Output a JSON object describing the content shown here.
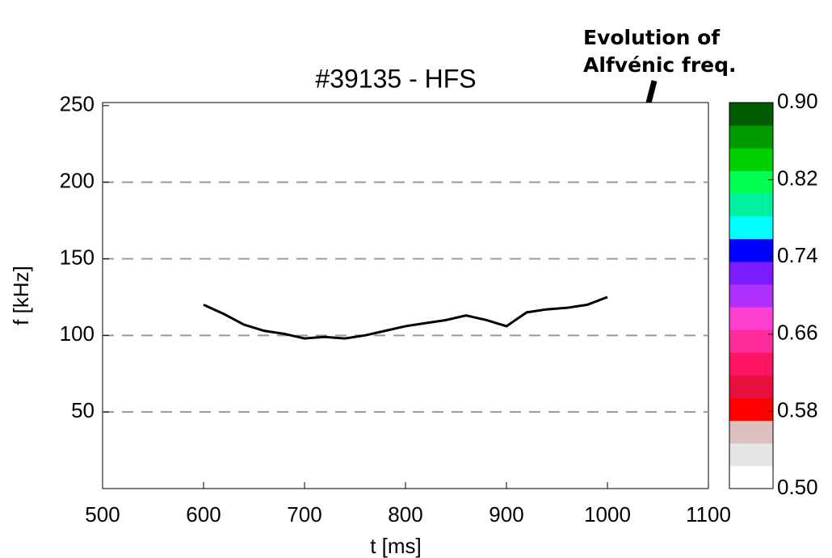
{
  "chart_data": {
    "type": "line",
    "title": "#39135 - HFS",
    "x_label": "t [ms]",
    "y_label": "f [kHz]",
    "annotation": [
      "Evolution of",
      "Alfvénic freq."
    ],
    "x": [
      600,
      620,
      640,
      660,
      680,
      700,
      720,
      740,
      760,
      780,
      800,
      820,
      840,
      860,
      880,
      900,
      920,
      940,
      960,
      980,
      1000
    ],
    "series": [
      {
        "name": "Alfvénic frequency",
        "color": "#000000",
        "values": [
          120,
          114,
          107,
          103,
          101,
          98,
          99,
          98,
          100,
          103,
          106,
          108,
          110,
          113,
          110,
          106,
          115,
          117,
          118,
          120,
          125
        ]
      }
    ],
    "xlim": [
      500,
      1100
    ],
    "xticks": [
      500,
      600,
      700,
      800,
      900,
      1000,
      1100
    ],
    "ylim": [
      0,
      252
    ],
    "yticks": [
      50,
      100,
      150,
      200,
      250
    ],
    "grid": true,
    "colorbar": {
      "lim": [
        0.5,
        0.9
      ],
      "ticks": [
        {
          "value": 0.5,
          "label": "0.50"
        },
        {
          "value": 0.58,
          "label": "0.58"
        },
        {
          "value": 0.66,
          "label": "0.66"
        },
        {
          "value": 0.74,
          "label": "0.74"
        },
        {
          "value": 0.82,
          "label": "0.82"
        },
        {
          "value": 0.9,
          "label": "0.90"
        }
      ],
      "colors": [
        "#ffffff",
        "#e6e6e6",
        "#dcc0c0",
        "#ff0000",
        "#e8103c",
        "#ff1464",
        "#ff2d9b",
        "#ff40d0",
        "#b030ff",
        "#7a1cff",
        "#0000ff",
        "#00ffff",
        "#00f0a0",
        "#00ff50",
        "#00d000",
        "#009a00",
        "#005a00"
      ]
    }
  }
}
